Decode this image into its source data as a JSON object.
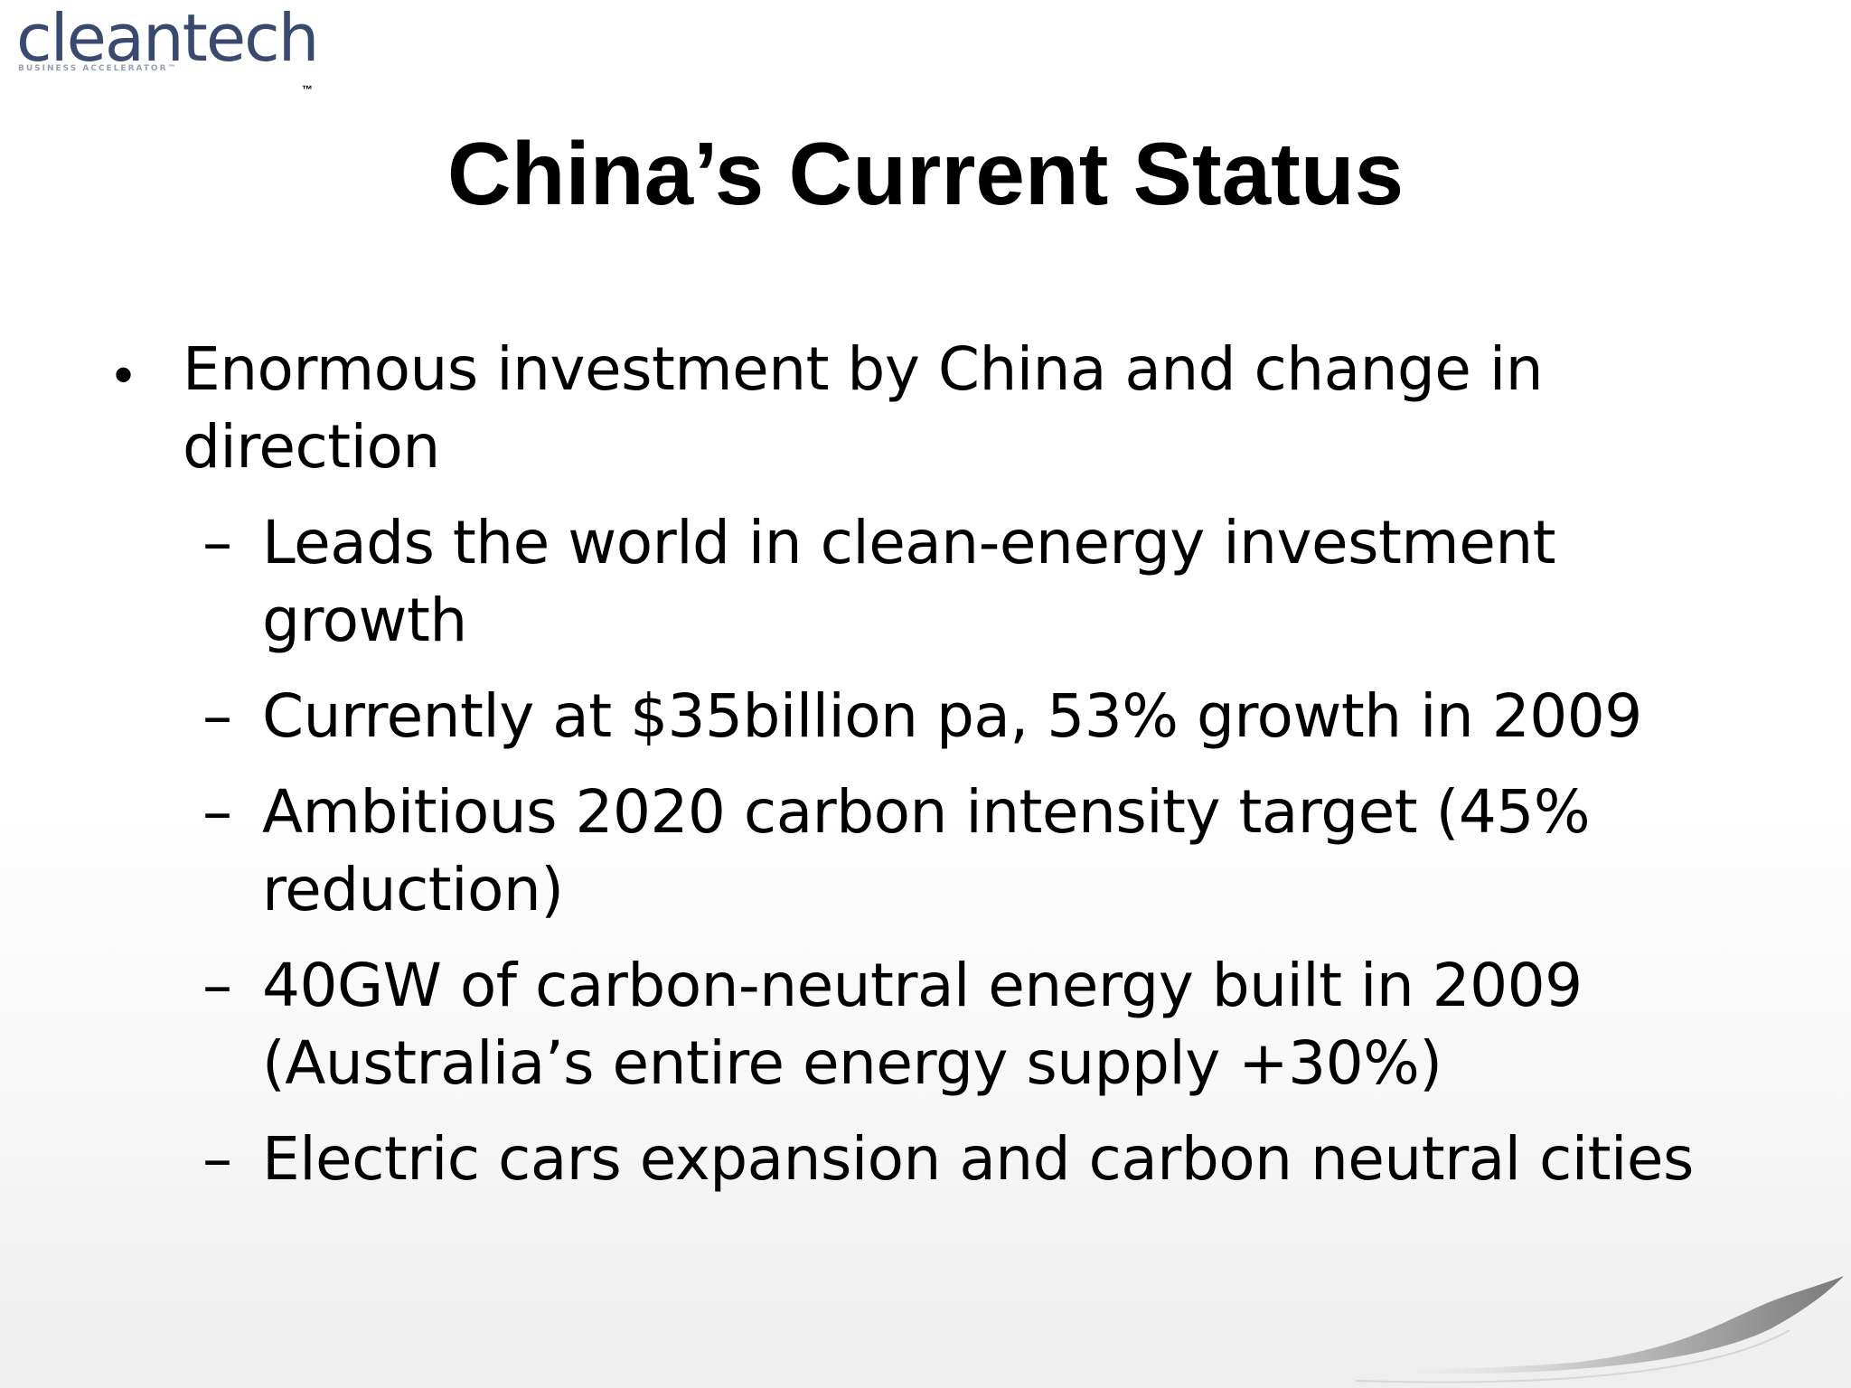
{
  "logo": {
    "wordmark": "cleantech",
    "tagline": "BUSINESS ACCELERATOR™",
    "trademark": "™",
    "colors": {
      "primary": "#3a4a6e",
      "secondary": "#9aa0ad"
    }
  },
  "slide": {
    "title": "China’s Current Status",
    "bullet": {
      "marker": "•",
      "line1": "Enormous investment by China and change in",
      "line2": "direction"
    },
    "sub_marker": "–",
    "sub_items": [
      {
        "line1": "Leads the world in clean-energy investment",
        "line2": "growth"
      },
      {
        "line1": "Currently at $35billion pa, 53% growth in 2009"
      },
      {
        "line1": "Ambitious 2020 carbon intensity target (45%",
        "line2": "reduction)"
      },
      {
        "line1": "40GW of carbon-neutral energy built in 2009",
        "line2": "(Australia’s entire energy supply +30%)"
      },
      {
        "line1": "Electric cars expansion and carbon neutral cities"
      }
    ]
  }
}
